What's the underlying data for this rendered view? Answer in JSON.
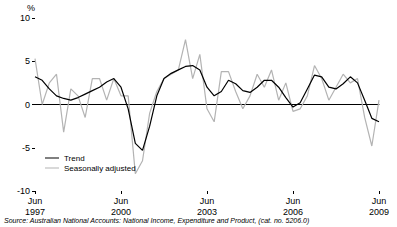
{
  "chart_data": {
    "type": "line",
    "ylabel": "%",
    "source": "Source: Australian National Accounts: National Income, Expenditure and Product, (cat. no. 5206.0)",
    "categories": [
      "Jun 1997",
      null,
      null,
      null,
      null,
      null,
      null,
      null,
      null,
      null,
      null,
      null,
      "Jun 2000",
      null,
      null,
      null,
      null,
      null,
      null,
      null,
      null,
      null,
      null,
      null,
      "Jun 2003",
      null,
      null,
      null,
      null,
      null,
      null,
      null,
      null,
      null,
      null,
      null,
      "Jun 2006",
      null,
      null,
      null,
      null,
      null,
      null,
      null,
      null,
      null,
      null,
      null,
      "Jun 2009"
    ],
    "series": [
      {
        "name": "Trend",
        "color": "#000000",
        "line_style": "solid",
        "values": [
          3.2,
          2.8,
          1.8,
          1.0,
          0.7,
          0.5,
          0.8,
          1.2,
          1.6,
          2.0,
          2.6,
          3.0,
          2.0,
          -0.5,
          -4.5,
          -5.3,
          -2.5,
          1.0,
          3.0,
          3.6,
          4.0,
          4.4,
          4.5,
          4.0,
          2.0,
          1.0,
          1.5,
          2.8,
          2.4,
          1.6,
          1.4,
          2.0,
          2.8,
          2.8,
          2.0,
          0.8,
          -0.3,
          0.2,
          1.8,
          3.4,
          3.2,
          2.0,
          1.8,
          2.4,
          3.2,
          2.5,
          0.5,
          -1.6,
          -2.0
        ]
      },
      {
        "name": "Seasonally adjusted",
        "color": "#b3b3b3",
        "line_style": "solid",
        "values": [
          5.3,
          0.0,
          2.5,
          3.5,
          -3.2,
          1.8,
          1.0,
          -1.5,
          3.0,
          3.0,
          0.5,
          3.0,
          1.0,
          1.0,
          -8.0,
          -6.5,
          -1.0,
          1.5,
          3.0,
          3.5,
          4.0,
          7.5,
          3.0,
          5.8,
          -0.5,
          -2.0,
          3.8,
          3.8,
          1.5,
          -0.5,
          1.0,
          3.5,
          2.0,
          4.0,
          0.5,
          2.5,
          -0.8,
          -0.5,
          1.0,
          4.5,
          3.0,
          0.5,
          2.0,
          3.5,
          2.5,
          3.0,
          -1.5,
          -4.8,
          0.5
        ]
      }
    ],
    "ylim": [
      -10,
      10
    ],
    "yticks": [
      -10,
      -5,
      0,
      5,
      10
    ],
    "grid": false,
    "legend": "lower left"
  }
}
